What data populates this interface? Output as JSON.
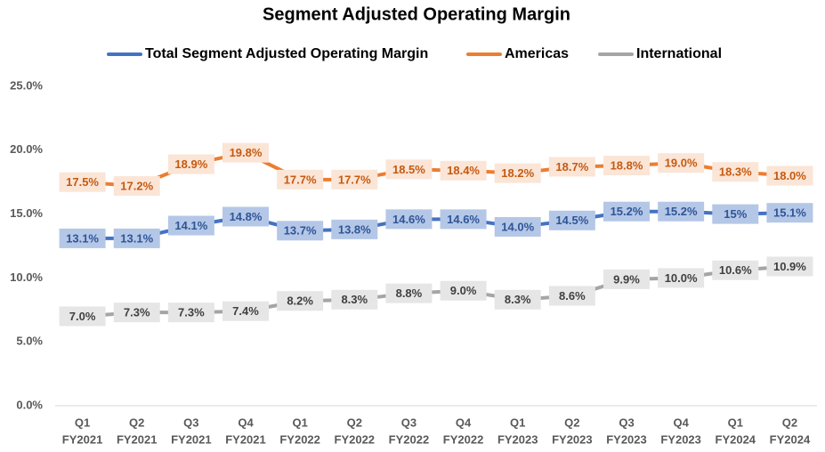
{
  "chart_data": {
    "type": "line",
    "title": "Segment Adjusted Operating Margin",
    "categories": [
      [
        "Q1",
        "FY2021"
      ],
      [
        "Q2",
        "FY2021"
      ],
      [
        "Q3",
        "FY2021"
      ],
      [
        "Q4",
        "FY2021"
      ],
      [
        "Q1",
        "FY2022"
      ],
      [
        "Q2",
        "FY2022"
      ],
      [
        "Q3",
        "FY2022"
      ],
      [
        "Q4",
        "FY2022"
      ],
      [
        "Q1",
        "FY2023"
      ],
      [
        "Q2",
        "FY2023"
      ],
      [
        "Q3",
        "FY2023"
      ],
      [
        "Q4",
        "FY2023"
      ],
      [
        "Q1",
        "FY2024"
      ],
      [
        "Q2",
        "FY2024"
      ]
    ],
    "series": [
      {
        "name": "Total Segment Adjusted Operating Margin",
        "color": "#4472c4",
        "label_fill": "#b4c7e7",
        "label_color": "#2f5597",
        "values": [
          13.1,
          13.1,
          14.1,
          14.8,
          13.7,
          13.8,
          14.6,
          14.6,
          14.0,
          14.5,
          15.2,
          15.2,
          15,
          15.1
        ],
        "value_labels": [
          "13.1%",
          "13.1%",
          "14.1%",
          "14.8%",
          "13.7%",
          "13.8%",
          "14.6%",
          "14.6%",
          "14.0%",
          "14.5%",
          "15.2%",
          "15.2%",
          "15%",
          "15.1%"
        ]
      },
      {
        "name": "Americas",
        "color": "#ed7d31",
        "label_fill": "#fbe5d6",
        "label_color": "#c55a11",
        "values": [
          17.5,
          17.2,
          18.9,
          19.8,
          17.7,
          17.7,
          18.5,
          18.4,
          18.2,
          18.7,
          18.8,
          19.0,
          18.3,
          18.0
        ],
        "value_labels": [
          "17.5%",
          "17.2%",
          "18.9%",
          "19.8%",
          "17.7%",
          "17.7%",
          "18.5%",
          "18.4%",
          "18.2%",
          "18.7%",
          "18.8%",
          "19.0%",
          "18.3%",
          "18.0%"
        ]
      },
      {
        "name": "International",
        "color": "#a5a5a5",
        "label_fill": "#e7e6e6",
        "label_color": "#404040",
        "values": [
          7.0,
          7.3,
          7.3,
          7.4,
          8.2,
          8.3,
          8.8,
          9.0,
          8.3,
          8.6,
          9.9,
          10.0,
          10.6,
          10.9
        ],
        "value_labels": [
          "7.0%",
          "7.3%",
          "7.3%",
          "7.4%",
          "8.2%",
          "8.3%",
          "8.8%",
          "9.0%",
          "8.3%",
          "8.6%",
          "9.9%",
          "10.0%",
          "10.6%",
          "10.9%"
        ]
      }
    ],
    "ylim": [
      0,
      25
    ],
    "yticks": [
      {
        "value": 0,
        "label": "0.0%"
      },
      {
        "value": 5,
        "label": "5.0%"
      },
      {
        "value": 10,
        "label": "10.0%"
      },
      {
        "value": 15,
        "label": "15.0%"
      },
      {
        "value": 20,
        "label": "20.0%"
      },
      {
        "value": 25,
        "label": "25.0%"
      }
    ],
    "grid": false,
    "legend": "top"
  }
}
